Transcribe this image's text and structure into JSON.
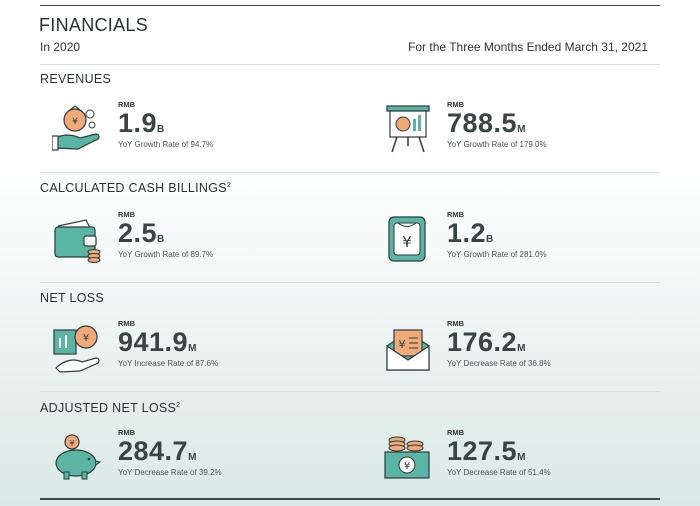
{
  "header": {
    "title": "FINANCIALS",
    "period_left": "In 2020",
    "period_right": "For the Three Months Ended March 31, 2021"
  },
  "sections": [
    {
      "title": "REVENUES",
      "footnote": "",
      "left": {
        "currency": "RMB",
        "value": "1.9",
        "unit": "B",
        "note": "YoY Growth Rate of 94.7%",
        "icon": "money-bag-hand-icon"
      },
      "right": {
        "currency": "RMB",
        "value": "788.5",
        "unit": "M",
        "note": "YoY Growth Rate of 179.0%",
        "icon": "presentation-board-icon"
      }
    },
    {
      "title": "CALCULATED CASH BILLINGS",
      "footnote": "2",
      "left": {
        "currency": "RMB",
        "value": "2.5",
        "unit": "B",
        "note": "YoY Growth Rate of 89.7%",
        "icon": "wallet-icon"
      },
      "right": {
        "currency": "RMB",
        "value": "1.2",
        "unit": "B",
        "note": "YoY Growth Rate of 281.0%",
        "icon": "yuan-tag-icon"
      }
    },
    {
      "title": "NET LOSS",
      "footnote": "",
      "left": {
        "currency": "RMB",
        "value": "941.9",
        "unit": "M",
        "note": "YoY Increase Rate of 87.6%",
        "icon": "hand-coin-chart-icon"
      },
      "right": {
        "currency": "RMB",
        "value": "176.2",
        "unit": "M",
        "note": "YoY Decrease Rate of 36.8%",
        "icon": "envelope-yuan-icon"
      }
    },
    {
      "title": "ADJUSTED NET LOSS",
      "footnote": "2",
      "left": {
        "currency": "RMB",
        "value": "284.7",
        "unit": "M",
        "note": "YoY Decrease Rate of 39.2%",
        "icon": "piggy-bank-icon"
      },
      "right": {
        "currency": "RMB",
        "value": "127.5",
        "unit": "M",
        "note": "YoY Decrease Rate of 51.4%",
        "icon": "cash-coins-icon"
      }
    }
  ],
  "colors": {
    "accent_teal": "#5bb5a5",
    "accent_orange": "#f0a978",
    "outline": "#2f3a3c"
  }
}
